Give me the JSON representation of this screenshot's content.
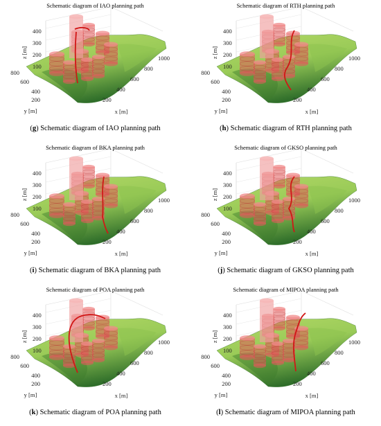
{
  "colors": {
    "terrain_light": "#9acb58",
    "terrain_dark": "#2f6e2a",
    "obstacle": "#e05a5a",
    "path": "#d11616"
  },
  "axes": {
    "z_label": "z [m]",
    "y_label": "y [m]",
    "x_label": "x [m]",
    "z_ticks": [
      "100",
      "200",
      "300",
      "400"
    ],
    "y_ticks": [
      "200",
      "400",
      "600",
      "800"
    ],
    "x_ticks": [
      "200",
      "400",
      "600",
      "800",
      "1000"
    ]
  },
  "panels": [
    {
      "title": "Schematic diagram of IAO planning path",
      "tag": "g",
      "caption": "Schematic diagram of IAO planning path"
    },
    {
      "title": "Schematic diagram of RTH planning path",
      "tag": "h",
      "caption": "Schematic diagram of RTH planning path"
    },
    {
      "title": "Schematic diagram of BKA planning path",
      "tag": "i",
      "caption": "Schematic diagram of BKA planning path"
    },
    {
      "title": "Schematic diagram of GKSO planning path",
      "tag": "j",
      "caption": "Schematic diagram of GKSO planning path"
    },
    {
      "title": "Schematic diagram of POA planning path",
      "tag": "k",
      "caption": "Schematic diagram of POA planning path"
    },
    {
      "title": "Schematic diagram of MIPOA planning path",
      "tag": "l",
      "caption": "Schematic diagram of MIPOA planning path"
    }
  ]
}
